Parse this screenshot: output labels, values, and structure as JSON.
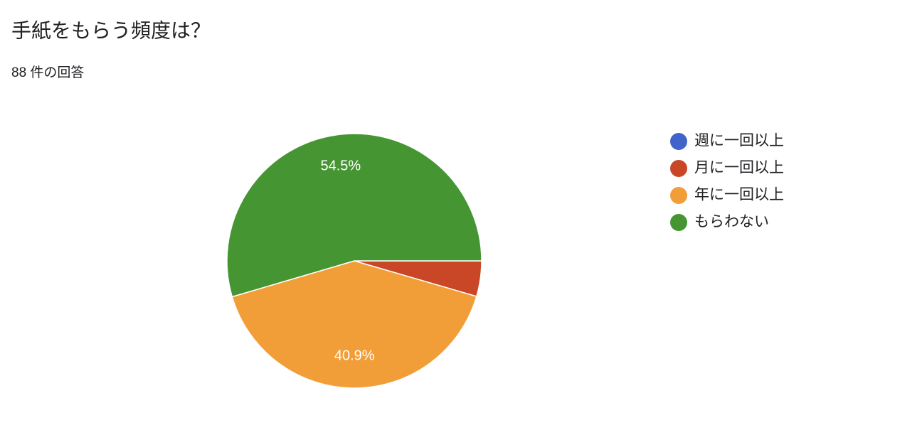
{
  "chart_data": {
    "type": "pie",
    "title": "手紙をもらう頻度は？",
    "subtitle": "88 件の回答",
    "categories": [
      "週に一回以上",
      "月に一回以上",
      "年に一回以上",
      "もらわない"
    ],
    "values": [
      0,
      4.5,
      40.9,
      54.5
    ],
    "value_labels": [
      null,
      null,
      "40.9%",
      "54.5%"
    ],
    "colors": [
      "#4263c9",
      "#c94627",
      "#f29e38",
      "#459532"
    ],
    "legend": "right"
  }
}
